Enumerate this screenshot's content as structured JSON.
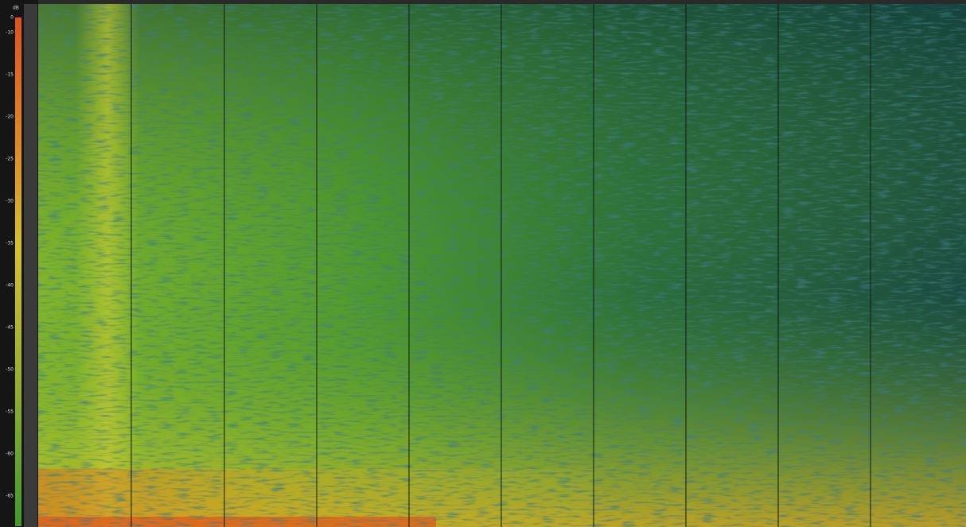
{
  "scale": {
    "unit": "dB",
    "labels": [
      "0",
      "-10",
      "-15",
      "-20",
      "-25",
      "-30",
      "-35",
      "-40",
      "-45",
      "-50",
      "-55",
      "-60",
      "-65"
    ]
  }
}
